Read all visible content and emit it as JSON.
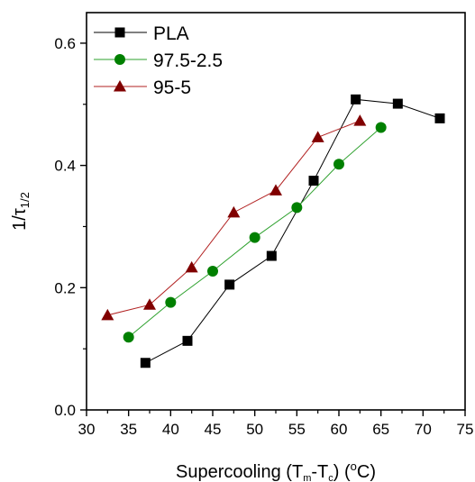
{
  "chart_data": {
    "type": "scatter",
    "title": "",
    "xlabel": {
      "main": "Supercooling (T",
      "sub1": "m",
      "mid": "-T",
      "sub2": "c",
      "end": ") (",
      "sup": "o",
      "unit": "C)"
    },
    "ylabel": {
      "main": "1/τ",
      "sub": "1/2"
    },
    "xlim": [
      30,
      75
    ],
    "ylim": [
      0.0,
      0.65
    ],
    "xticks": [
      30,
      35,
      40,
      45,
      50,
      55,
      60,
      65,
      70,
      75
    ],
    "xtick_labels": [
      "30",
      "35",
      "40",
      "45",
      "50",
      "55",
      "60",
      "65",
      "70",
      "75"
    ],
    "yticks": [
      0.0,
      0.2,
      0.4,
      0.6
    ],
    "ytick_labels": [
      "0.0",
      "0.2",
      "0.4",
      "0.6"
    ],
    "grid": false,
    "legend_position": "top-left",
    "series": [
      {
        "name": "PLA",
        "marker": "square",
        "color": "#000000",
        "line_color": "#000000",
        "x": [
          37,
          42,
          47,
          52,
          57,
          62,
          67,
          72
        ],
        "y": [
          0.077,
          0.113,
          0.205,
          0.252,
          0.375,
          0.508,
          0.501,
          0.477
        ]
      },
      {
        "name": "97.5-2.5",
        "marker": "circle",
        "color": "#008000",
        "line_color": "#2ca02c",
        "x": [
          35,
          40,
          45,
          50,
          55,
          60,
          65
        ],
        "y": [
          0.119,
          0.176,
          0.227,
          0.282,
          0.331,
          0.402,
          0.462
        ]
      },
      {
        "name": "95-5",
        "marker": "triangle",
        "color": "#800000",
        "line_color": "#b22222",
        "x": [
          32.5,
          37.5,
          42.5,
          47.5,
          52.5,
          57.5,
          62.5
        ],
        "y": [
          0.155,
          0.172,
          0.233,
          0.323,
          0.359,
          0.446,
          0.473
        ]
      }
    ]
  }
}
